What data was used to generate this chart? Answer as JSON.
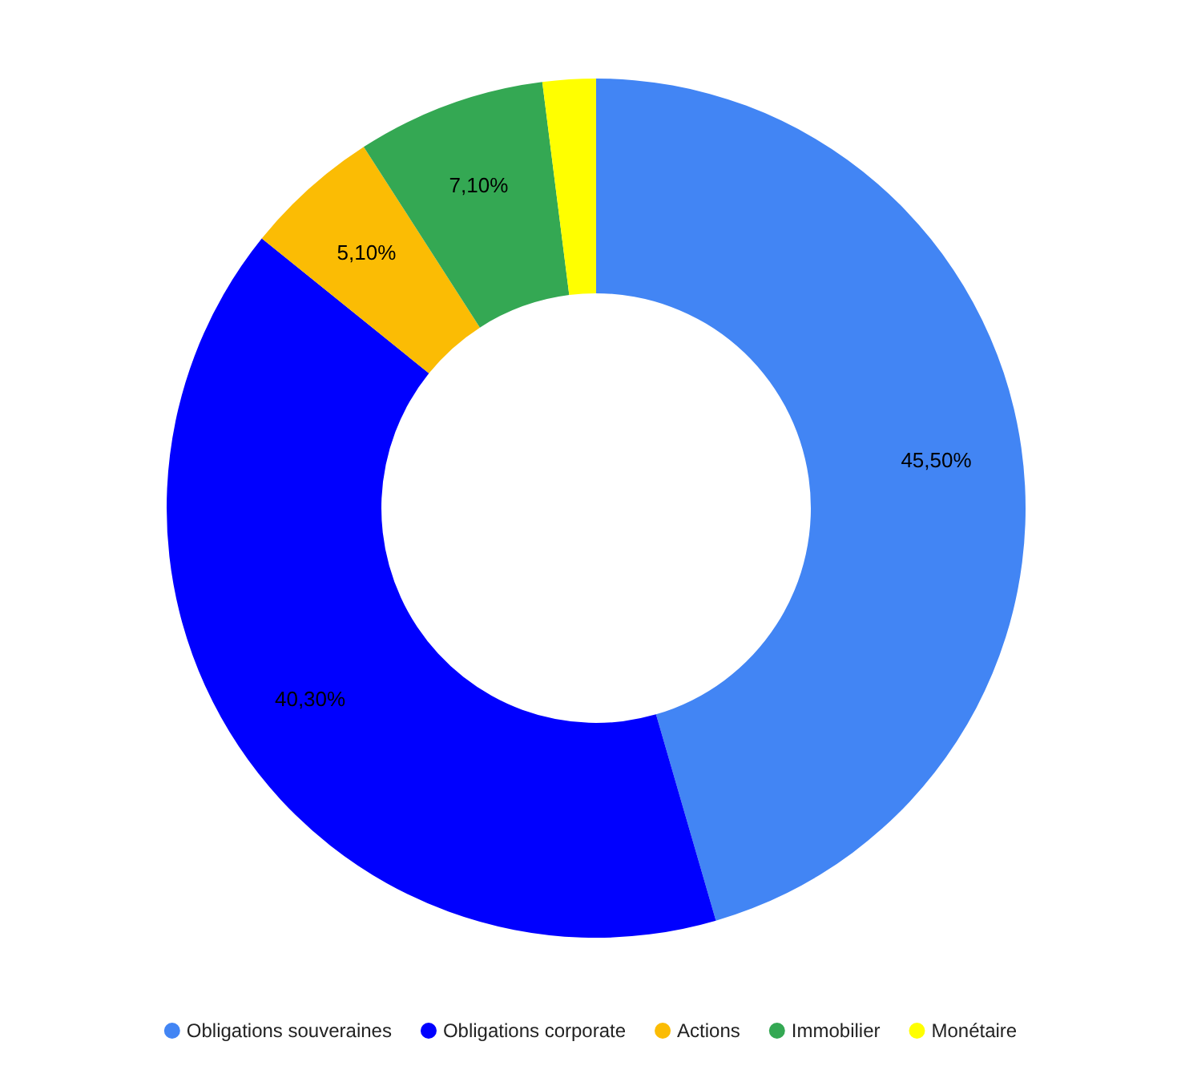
{
  "chart_data": {
    "type": "donut",
    "categories": [
      "Obligations souveraines",
      "Obligations corporate",
      "Actions",
      "Immobilier",
      "Monétaire"
    ],
    "values": [
      45.5,
      40.3,
      5.1,
      7.1,
      2.0
    ],
    "colors": [
      "#4285f4",
      "#0000ff",
      "#fbbc04",
      "#34a853",
      "#ffff00"
    ],
    "value_labels": [
      "45,50%",
      "40,30%",
      "5,10%",
      "7,10%",
      null
    ],
    "legend": "bottom"
  }
}
